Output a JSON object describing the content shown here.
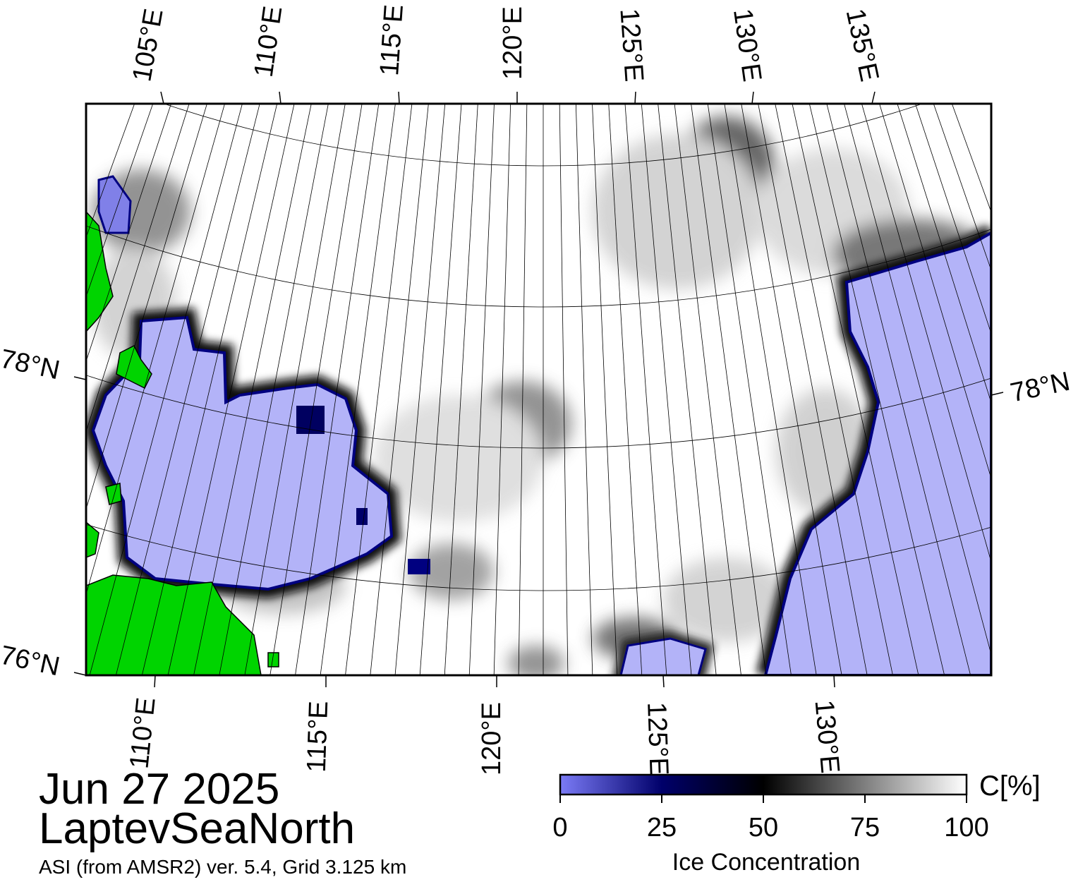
{
  "map": {
    "date": "Jun 27 2025",
    "region": "LaptevSeaNorth",
    "source": "ASI (from AMSR2) ver. 5.4,  Grid 3.125 km",
    "top_lon_labels": [
      "105°E",
      "110°E",
      "115°E",
      "120°E",
      "125°E",
      "130°E",
      "135°E"
    ],
    "bottom_lon_labels": [
      "110°E",
      "115°E",
      "120°E",
      "125°E",
      "130°E"
    ],
    "left_lat_labels": [
      "78°N",
      "76°N"
    ],
    "right_lat_labels": [
      "78°N"
    ],
    "colors": {
      "water": "#b3b3f8",
      "land": "#00d400",
      "ice_high": "#ffffff",
      "ice_mid": "#000000",
      "ice_low": "#000080",
      "coast_gray": "#7f7f7f"
    }
  },
  "colorbar": {
    "title": "Ice Concentration",
    "unit": "C[%]",
    "ticks": [
      "0",
      "25",
      "50",
      "75",
      "100"
    ],
    "tick_values": [
      0,
      25,
      50,
      75,
      100
    ],
    "colors": [
      "#7b7bf6",
      "#00006a",
      "#000000",
      "#7f7f7f",
      "#ffffff"
    ]
  }
}
